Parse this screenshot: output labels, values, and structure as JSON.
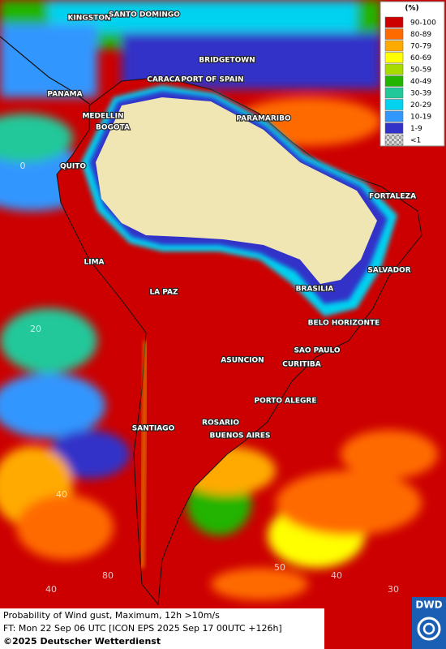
{
  "legend": {
    "title": "(%)",
    "entries": [
      {
        "label": "90-100",
        "color": "#cc0000"
      },
      {
        "label": "80-89",
        "color": "#ff6a00"
      },
      {
        "label": "70-79",
        "color": "#ffaa00"
      },
      {
        "label": "60-69",
        "color": "#ffff00"
      },
      {
        "label": "50-59",
        "color": "#a8dc00"
      },
      {
        "label": "40-49",
        "color": "#22b400"
      },
      {
        "label": "30-39",
        "color": "#22c89a"
      },
      {
        "label": "20-29",
        "color": "#00d2f0"
      },
      {
        "label": "10-19",
        "color": "#3296ff"
      },
      {
        "label": "1-9",
        "color": "#3232c8"
      },
      {
        "label": "<1",
        "color": "#b4b4b4"
      }
    ]
  },
  "cities": [
    "KINGSTON",
    "SANTO DOMINGO",
    "BRIDGETOWN",
    "CARACAS",
    "PORT OF SPAIN",
    "PANAMA",
    "MEDELLIN",
    "BOGOTA",
    "PARAMARIBO",
    "QUITO",
    "FORTALEZA",
    "LIMA",
    "SALVADOR",
    "BRASILIA",
    "LA PAZ",
    "BELO HORIZONTE",
    "SAO PAULO",
    "ASUNCION",
    "CURITIBA",
    "PORTO ALEGRE",
    "SANTIAGO",
    "ROSARIO",
    "BUENOS AIRES"
  ],
  "grid_labels": [
    "0",
    "20",
    "40",
    "80",
    "40",
    "50",
    "40",
    "30"
  ],
  "footer": {
    "line1": "Probability of Wind gust, Maximum, 12h >10m/s",
    "line2": "FT: Mon 22 Sep 06 UTC [ICON EPS 2025 Sep 17 00UTC +126h]",
    "line3": "©2025 Deutscher Wetterdienst"
  },
  "logo": "DWD"
}
